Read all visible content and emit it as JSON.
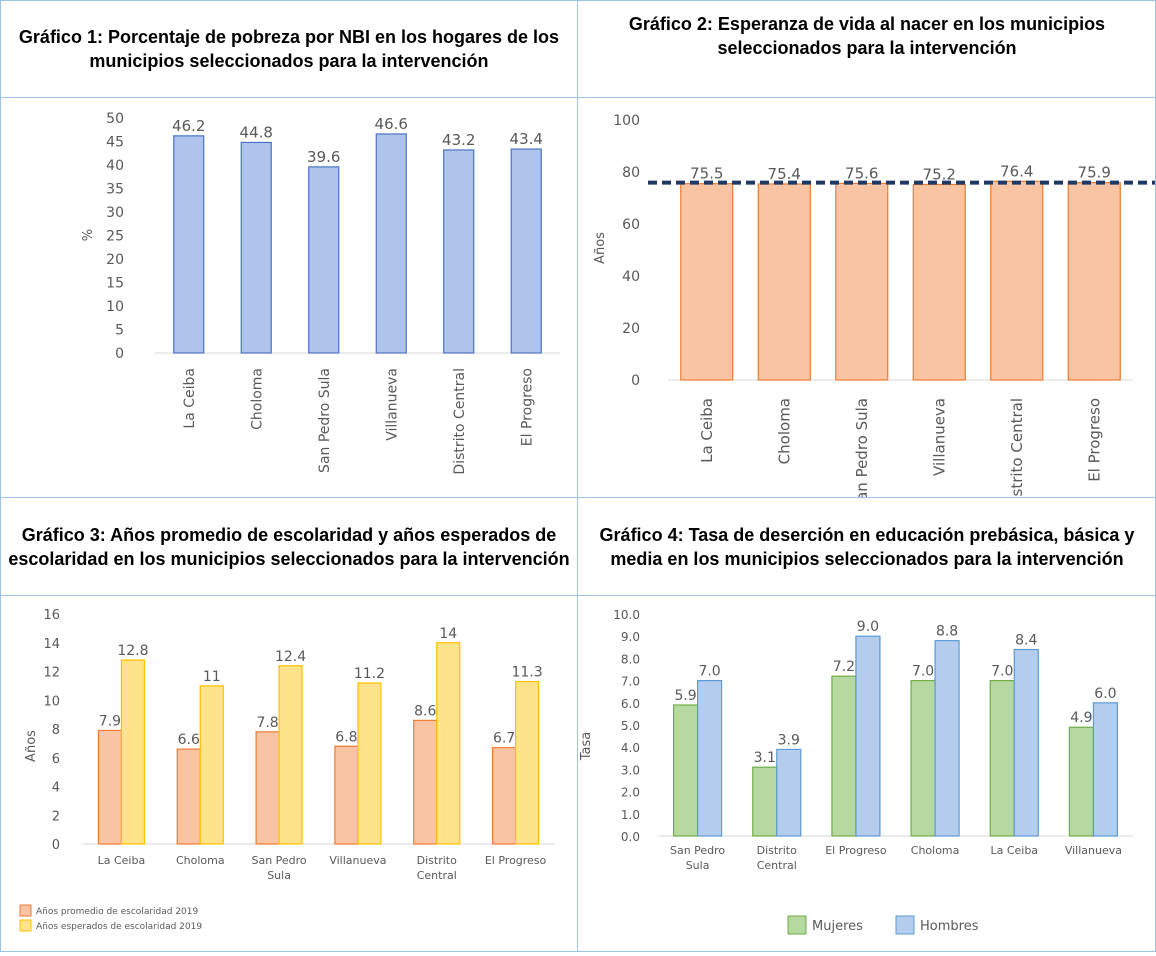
{
  "titles": {
    "g1": "Gráfico 1: Porcentaje de pobreza por NBI en los hogares de los municipios seleccionados para la intervención",
    "g2": "Gráfico 2: Esperanza de vida al nacer en los municipios seleccionados para la intervención",
    "g3": "Gráfico 3: Años promedio de escolaridad y años esperados de escolaridad en los municipios seleccionados para la intervención",
    "g4": "Gráfico 4: Tasa de deserción en educación prebásica, básica y media en los municipios seleccionados para la intervención"
  },
  "chart_data": [
    {
      "id": "g1",
      "type": "bar",
      "categories": [
        "La Ceiba",
        "Choloma",
        "San Pedro Sula",
        "Villanueva",
        "Distrito Central",
        "El Progreso"
      ],
      "series": [
        {
          "values": [
            46.2,
            44.8,
            39.6,
            46.6,
            43.2,
            43.4
          ],
          "color": "#aec4ea",
          "stroke": "#4a72c4"
        }
      ],
      "ylabel": "%",
      "ylim": [
        0,
        50
      ],
      "yticks": [
        "0",
        "5",
        "10",
        "15",
        "20",
        "25",
        "30",
        "35",
        "40",
        "45",
        "50"
      ],
      "data_labels": [
        "46.2",
        "44.8",
        "39.6",
        "46.6",
        "43.2",
        "43.4"
      ],
      "grid": false,
      "x_labels_rotated": true
    },
    {
      "id": "g2",
      "type": "bar",
      "categories": [
        "La Ceiba",
        "Choloma",
        "San Pedro Sula",
        "Villanueva",
        "Distrito Central",
        "El Progreso"
      ],
      "series": [
        {
          "values": [
            75.5,
            75.4,
            75.6,
            75.2,
            76.4,
            75.9
          ],
          "color": "#f8c4a4",
          "stroke": "#ed7d31"
        }
      ],
      "reference_line": {
        "value": 75.9,
        "color": "#1f3864",
        "style": "dashed"
      },
      "ylabel": "Años",
      "ylim": [
        0,
        100
      ],
      "yticks": [
        "0",
        "20",
        "40",
        "60",
        "80",
        "100"
      ],
      "data_labels": [
        "75.5",
        "75.4",
        "75.6",
        "75.2",
        "76.4",
        "75.9"
      ],
      "grid": false,
      "x_labels_rotated": true
    },
    {
      "id": "g3",
      "type": "bar",
      "categories": [
        [
          "La Ceiba"
        ],
        [
          "Choloma"
        ],
        [
          "San Pedro",
          "Sula"
        ],
        [
          "Villanueva"
        ],
        [
          "Distrito",
          "Central"
        ],
        [
          "El Progreso"
        ]
      ],
      "series": [
        {
          "name": "Años promedio de escolaridad 2019",
          "values": [
            7.9,
            6.6,
            7.8,
            6.8,
            8.6,
            6.7
          ],
          "labels": [
            "7.9",
            "6.6",
            "7.8",
            "6.8",
            "8.6",
            "6.7"
          ],
          "color": "#f8c4a4",
          "stroke": "#ed7d31"
        },
        {
          "name": "Años esperados de escolaridad 2019",
          "values": [
            12.8,
            11,
            12.4,
            11.2,
            14,
            11.3
          ],
          "labels": [
            "12.8",
            "11",
            "12.4",
            "11.2",
            "14",
            "11.3"
          ],
          "color": "#ffe28a",
          "stroke": "#ffc000"
        }
      ],
      "ylabel": "Años",
      "ylim": [
        0,
        16
      ],
      "yticks": [
        "0",
        "2",
        "4",
        "6",
        "8",
        "10",
        "12",
        "14",
        "16"
      ],
      "legend": "bottom-left",
      "grid": false
    },
    {
      "id": "g4",
      "type": "bar",
      "categories": [
        [
          "San Pedro",
          "Sula"
        ],
        [
          "Distrito",
          "Central"
        ],
        [
          "El Progreso"
        ],
        [
          "Choloma"
        ],
        [
          "La Ceiba"
        ],
        [
          "Villanueva"
        ]
      ],
      "series": [
        {
          "name": "Mujeres",
          "values": [
            5.9,
            3.1,
            7.2,
            7.0,
            7.0,
            4.9
          ],
          "labels": [
            "5.9",
            "3.1",
            "7.2",
            "7.0",
            "7.0",
            "4.9"
          ],
          "color": "#b5d9a0",
          "stroke": "#70ad47"
        },
        {
          "name": "Hombres",
          "values": [
            7.0,
            3.9,
            9.0,
            8.8,
            8.4,
            6.0
          ],
          "labels": [
            "7.0",
            "3.9",
            "9.0",
            "8.8",
            "8.4",
            "6.0"
          ],
          "color": "#b4cdec",
          "stroke": "#5b9bd5"
        }
      ],
      "ylabel": "Tasa",
      "ylim": [
        0,
        10
      ],
      "yticks": [
        "0.0",
        "1.0",
        "2.0",
        "3.0",
        "4.0",
        "5.0",
        "6.0",
        "7.0",
        "8.0",
        "9.0",
        "10.0"
      ],
      "legend": "bottom-center",
      "grid": false
    }
  ]
}
